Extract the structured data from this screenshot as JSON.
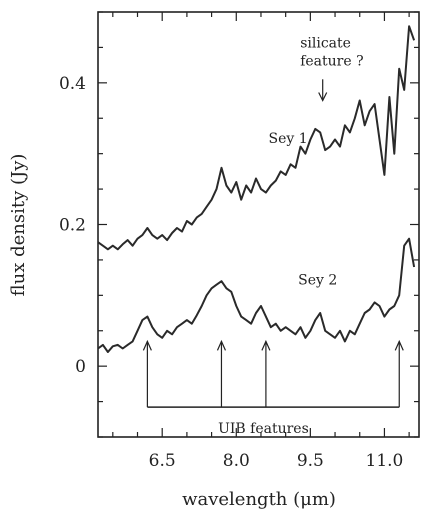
{
  "chart_data": {
    "type": "line",
    "xlabel": "wavelength (μm)",
    "ylabel": "flux density (Jy)",
    "xlim": [
      5.2,
      11.7
    ],
    "ylim": [
      -0.1,
      0.5
    ],
    "x_ticks": [
      6.5,
      8.0,
      9.5,
      11.0
    ],
    "x_tick_labels": [
      "6.5",
      "8.0",
      "9.5",
      "11.0"
    ],
    "y_ticks": [
      0,
      0.2,
      0.4
    ],
    "y_tick_labels": [
      "0",
      "0.2",
      "0.4"
    ],
    "grid": false,
    "legend": "none",
    "series": [
      {
        "name": "Sey 1",
        "color": "#2a2a2a",
        "x": [
          5.2,
          5.3,
          5.4,
          5.5,
          5.6,
          5.7,
          5.8,
          5.9,
          6.0,
          6.1,
          6.2,
          6.3,
          6.4,
          6.5,
          6.6,
          6.7,
          6.8,
          6.9,
          7.0,
          7.1,
          7.2,
          7.3,
          7.4,
          7.5,
          7.6,
          7.7,
          7.8,
          7.9,
          8.0,
          8.1,
          8.2,
          8.3,
          8.4,
          8.5,
          8.6,
          8.7,
          8.8,
          8.9,
          9.0,
          9.1,
          9.2,
          9.3,
          9.4,
          9.5,
          9.6,
          9.7,
          9.8,
          9.9,
          10.0,
          10.1,
          10.2,
          10.3,
          10.4,
          10.5,
          10.6,
          10.7,
          10.8,
          10.9,
          11.0,
          11.1,
          11.2,
          11.3,
          11.4,
          11.5,
          11.6
        ],
        "y": [
          0.175,
          0.17,
          0.165,
          0.17,
          0.165,
          0.172,
          0.178,
          0.17,
          0.18,
          0.185,
          0.195,
          0.185,
          0.18,
          0.185,
          0.178,
          0.188,
          0.195,
          0.19,
          0.205,
          0.2,
          0.21,
          0.215,
          0.225,
          0.235,
          0.25,
          0.28,
          0.255,
          0.245,
          0.26,
          0.235,
          0.255,
          0.245,
          0.265,
          0.25,
          0.245,
          0.255,
          0.262,
          0.275,
          0.27,
          0.285,
          0.28,
          0.31,
          0.3,
          0.32,
          0.335,
          0.33,
          0.305,
          0.31,
          0.32,
          0.31,
          0.34,
          0.33,
          0.35,
          0.375,
          0.34,
          0.36,
          0.37,
          0.32,
          0.27,
          0.38,
          0.3,
          0.42,
          0.39,
          0.48,
          0.46
        ]
      },
      {
        "name": "Sey 2",
        "color": "#2a2a2a",
        "x": [
          5.2,
          5.3,
          5.4,
          5.5,
          5.6,
          5.7,
          5.8,
          5.9,
          6.0,
          6.1,
          6.2,
          6.3,
          6.4,
          6.5,
          6.6,
          6.7,
          6.8,
          6.9,
          7.0,
          7.1,
          7.2,
          7.3,
          7.4,
          7.5,
          7.6,
          7.7,
          7.8,
          7.9,
          8.0,
          8.1,
          8.2,
          8.3,
          8.4,
          8.5,
          8.6,
          8.7,
          8.8,
          8.9,
          9.0,
          9.1,
          9.2,
          9.3,
          9.4,
          9.5,
          9.6,
          9.7,
          9.8,
          9.9,
          10.0,
          10.1,
          10.2,
          10.3,
          10.4,
          10.5,
          10.6,
          10.7,
          10.8,
          10.9,
          11.0,
          11.1,
          11.2,
          11.3,
          11.4,
          11.5,
          11.6
        ],
        "y": [
          0.025,
          0.03,
          0.02,
          0.028,
          0.03,
          0.025,
          0.03,
          0.035,
          0.05,
          0.065,
          0.07,
          0.055,
          0.045,
          0.04,
          0.05,
          0.045,
          0.055,
          0.06,
          0.065,
          0.06,
          0.072,
          0.085,
          0.1,
          0.11,
          0.115,
          0.12,
          0.11,
          0.105,
          0.085,
          0.07,
          0.065,
          0.06,
          0.075,
          0.085,
          0.07,
          0.055,
          0.06,
          0.05,
          0.055,
          0.05,
          0.045,
          0.055,
          0.04,
          0.05,
          0.065,
          0.075,
          0.05,
          0.045,
          0.04,
          0.05,
          0.035,
          0.05,
          0.045,
          0.06,
          0.075,
          0.08,
          0.09,
          0.085,
          0.07,
          0.08,
          0.085,
          0.1,
          0.17,
          0.18,
          0.14
        ]
      }
    ],
    "annotations": [
      {
        "id": "sey1",
        "text": "Sey 1",
        "x": 9.05,
        "y": 0.315
      },
      {
        "id": "sey2",
        "text": "Sey 2",
        "x": 9.65,
        "y": 0.115
      },
      {
        "id": "silicate",
        "lines": [
          "silicate",
          "feature ?"
        ],
        "arrow_x": 9.75,
        "arrow_from_y": 0.405,
        "arrow_to_y": 0.375,
        "text_x": 9.7,
        "text_y": 0.45
      },
      {
        "id": "uib",
        "text": "UIB features",
        "x": 8.55,
        "y": -0.055,
        "bracket_y": -0.055,
        "arrow_top_y": 0.035,
        "arrow_positions": [
          6.2,
          7.7,
          8.6,
          11.3
        ]
      }
    ]
  }
}
